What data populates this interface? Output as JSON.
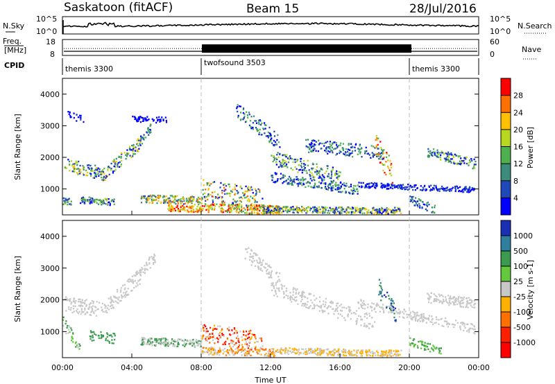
{
  "header": {
    "station": "Saskatoon (fitACF)",
    "beam": "Beam 15",
    "date": "28/Jul/2016"
  },
  "chart_data": [
    {
      "type": "line",
      "panel": "noise",
      "left_label": "N.Sky",
      "right_label": "N.Search",
      "yticks_left": [
        "10^5",
        "10^0"
      ],
      "yticks_right": [
        "10^5",
        "10^0"
      ]
    },
    {
      "type": "line",
      "panel": "frequency",
      "left_label_line1": "Freq.",
      "left_label_line2": "[MHz]",
      "right_label": "Nave",
      "yticks_left": [
        "18",
        "8"
      ],
      "yticks_right": [
        "60",
        "0"
      ],
      "cpid_label": "CPID",
      "cpid_segments": [
        {
          "start_hour": 0,
          "end_hour": 8,
          "label": "themis 3300"
        },
        {
          "start_hour": 8,
          "end_hour": 20,
          "label": "twofsound 3503"
        },
        {
          "start_hour": 20,
          "end_hour": 24,
          "label": "themis 3300"
        }
      ]
    },
    {
      "type": "heatmap",
      "panel": "power",
      "ylabel": "Slant Range [km]",
      "yticks": [
        "1000",
        "2000",
        "3000",
        "4000"
      ],
      "ylim": [
        180,
        4500
      ],
      "colorbar_label": "Power [dB]",
      "colorbar_ticks": [
        "4",
        "8",
        "12",
        "16",
        "20",
        "24",
        "28"
      ],
      "colors": [
        "#0000ff",
        "#1f48b8",
        "#3c8c7c",
        "#4fb04f",
        "#b8d820",
        "#ffc000",
        "#ff7000",
        "#ff0000"
      ]
    },
    {
      "type": "heatmap",
      "panel": "velocity",
      "ylabel": "Slant Range [km]",
      "yticks": [
        "1000",
        "2000",
        "3000",
        "4000"
      ],
      "ylim": [
        180,
        4500
      ],
      "colorbar_label": "Velocity [m s-1]",
      "colorbar_ticks": [
        "1000",
        "500",
        "100",
        "25",
        "-25",
        "-100",
        "-500",
        "-1000"
      ],
      "colors": [
        "#1a2fb4",
        "#2f7f9f",
        "#3b9a4f",
        "#64c83c",
        "#c8c8c8",
        "#ffb000",
        "#ff7000",
        "#ff2000",
        "#ff0000"
      ]
    }
  ],
  "xaxis": {
    "xlabel": "Time UT",
    "ticks": [
      "00:00",
      "04:00",
      "08:00",
      "12:00",
      "16:00",
      "20:00",
      "00:00"
    ]
  }
}
